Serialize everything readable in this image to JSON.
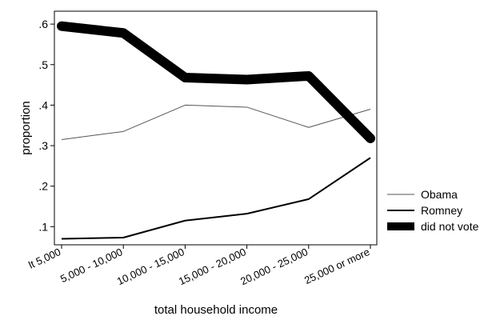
{
  "chart_data": {
    "type": "line",
    "title": "",
    "xlabel": "total household income",
    "ylabel": "proportion",
    "categories": [
      "lt 5,000",
      "5,000 - 10,000",
      "10,000 - 15,000",
      "15,000 - 20,000",
      "20,000 - 25,000",
      "25,000 or more"
    ],
    "yticks": [
      0.1,
      0.2,
      0.3,
      0.4,
      0.5,
      0.6
    ],
    "ytick_labels": [
      ".1",
      ".2",
      ".3",
      ".4",
      ".5",
      ".6"
    ],
    "ylim": [
      0.075,
      0.62
    ],
    "grid": false,
    "legend_position": "right",
    "series": [
      {
        "name": "Obama",
        "values": [
          0.315,
          0.335,
          0.4,
          0.395,
          0.345,
          0.39
        ],
        "color": "#555555",
        "style": "thin"
      },
      {
        "name": "Romney",
        "values": [
          0.07,
          0.073,
          0.115,
          0.132,
          0.168,
          0.27
        ],
        "color": "#000000",
        "style": "medium"
      },
      {
        "name": "did not vote",
        "values": [
          0.595,
          0.578,
          0.468,
          0.463,
          0.472,
          0.318
        ],
        "color": "#000000",
        "style": "thick"
      }
    ]
  }
}
